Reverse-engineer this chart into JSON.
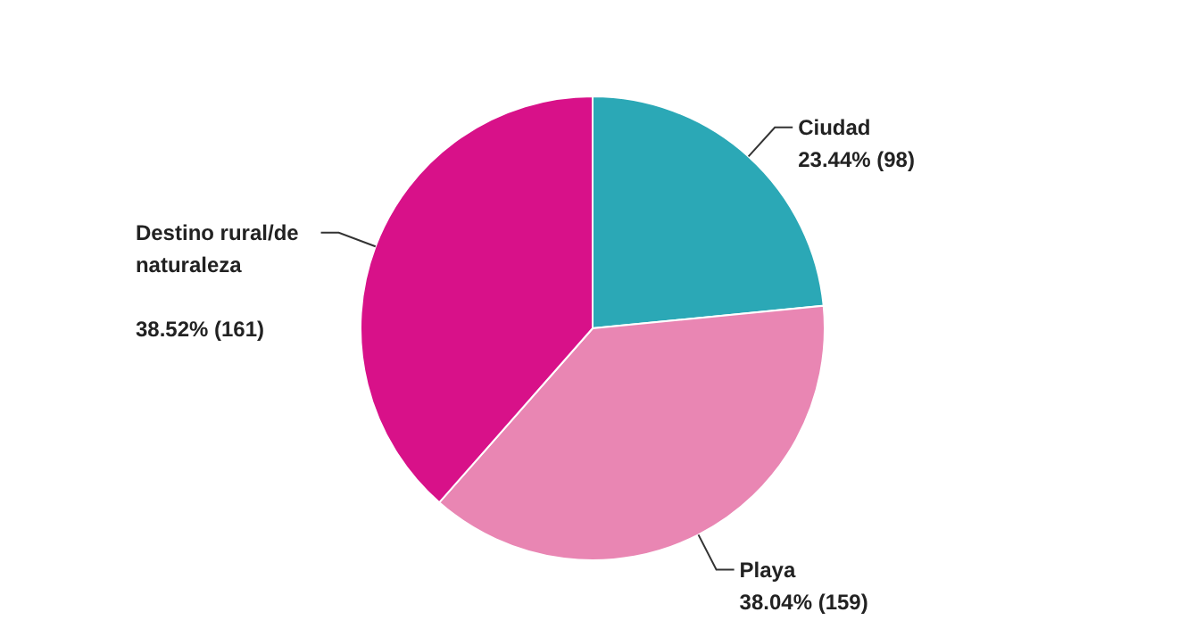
{
  "chart_data": {
    "type": "pie",
    "categories": [
      "Ciudad",
      "Playa",
      "Destino rural/de naturaleza"
    ],
    "values": [
      98,
      159,
      161
    ],
    "value_labels": [
      "23.44% (98)",
      "38.04% (159)",
      "38.52% (161)"
    ],
    "colors": [
      "#2ba8b6",
      "#e986b3",
      "#d81189"
    ]
  }
}
